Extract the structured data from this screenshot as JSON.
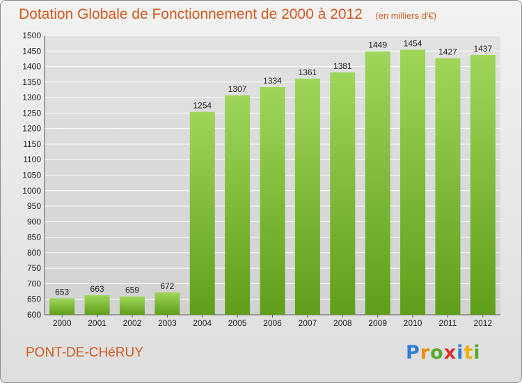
{
  "title": "Dotation Globale de Fonctionnement de 2000 à 2012",
  "unit": "(en milliers d'€)",
  "commune": "PONT-DE-CHéRUY",
  "brand": {
    "letters": [
      {
        "ch": "P",
        "color": "#2f7fd1"
      },
      {
        "ch": "r",
        "color": "#f08a00"
      },
      {
        "ch": "o",
        "color": "#5aa830"
      },
      {
        "ch": "x",
        "color": "#e03030"
      },
      {
        "ch": "i",
        "color": "#2f7fd1"
      },
      {
        "ch": "t",
        "color": "#f0b000"
      },
      {
        "ch": "i",
        "color": "#5aa830"
      }
    ]
  },
  "colors": {
    "title": "#d05b1f",
    "bar_light": "#9fd65a",
    "bar_dark": "#5f9e1a",
    "grid": "#ffffff",
    "axis_text": "#222222"
  },
  "chart_data": {
    "type": "bar",
    "categories": [
      "2000",
      "2001",
      "2002",
      "2003",
      "2004",
      "2005",
      "2006",
      "2007",
      "2008",
      "2009",
      "2010",
      "2011",
      "2012"
    ],
    "values": [
      653,
      663,
      659,
      672,
      1254,
      1307,
      1334,
      1361,
      1381,
      1449,
      1454,
      1427,
      1437
    ],
    "ylim": [
      600,
      1500
    ],
    "ytick_step": 50,
    "grid": true,
    "legend": "none"
  }
}
